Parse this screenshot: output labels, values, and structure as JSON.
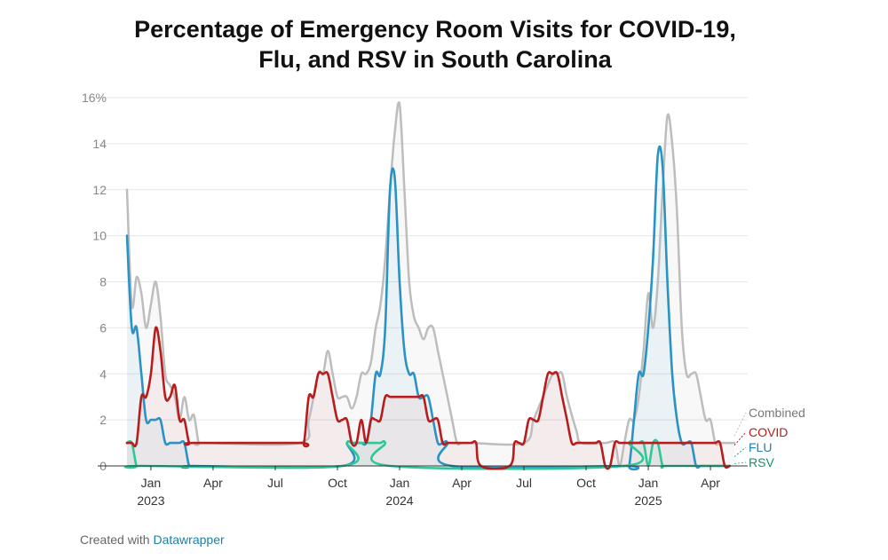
{
  "title_line1": "Percentage of Emergency Room Visits for COVID-19,",
  "title_line2": "Flu, and RSV in South Carolina",
  "footer": {
    "prefix": "Created with",
    "link": "Datawrapper"
  },
  "colors": {
    "combined": "#bdbdbd",
    "covid": "#b81c1c",
    "flu": "#2a93c4",
    "rsv": "#2ec796",
    "grid": "#e6e6e6"
  },
  "chart_data": {
    "type": "line",
    "title": "Percentage of Emergency Room Visits for COVID-19, Flu, and RSV in South Carolina",
    "x_unit": "weeks since first observation (first week ≈ late Nov 2022)",
    "ylim": [
      0,
      16
    ],
    "yticks": [
      "0",
      "2",
      "4",
      "6",
      "8",
      "10",
      "12",
      "14",
      "16%"
    ],
    "xticks": [
      {
        "week": 5,
        "label": "Jan",
        "year": "2023"
      },
      {
        "week": 18,
        "label": "Apr",
        "year": ""
      },
      {
        "week": 31,
        "label": "Jul",
        "year": ""
      },
      {
        "week": 44,
        "label": "Oct",
        "year": ""
      },
      {
        "week": 57,
        "label": "Jan",
        "year": "2024"
      },
      {
        "week": 70,
        "label": "Apr",
        "year": ""
      },
      {
        "week": 83,
        "label": "Jul",
        "year": ""
      },
      {
        "week": 96,
        "label": "Oct",
        "year": ""
      },
      {
        "week": 109,
        "label": "Jan",
        "year": "2025"
      },
      {
        "week": 122,
        "label": "Apr",
        "year": ""
      }
    ],
    "grid": true,
    "series": [
      {
        "name": "Combined",
        "key": "combined",
        "points": [
          [
            0,
            12
          ],
          [
            1,
            7
          ],
          [
            2,
            8.2
          ],
          [
            3,
            7.5
          ],
          [
            4,
            6
          ],
          [
            5,
            7
          ],
          [
            6,
            8
          ],
          [
            7,
            6.5
          ],
          [
            8,
            4
          ],
          [
            9,
            3.5
          ],
          [
            10,
            3
          ],
          [
            11,
            2
          ],
          [
            12,
            3
          ],
          [
            13,
            2
          ],
          [
            14,
            2.2
          ],
          [
            15,
            1
          ],
          [
            16,
            1
          ],
          [
            36,
            1
          ],
          [
            38,
            2
          ],
          [
            40,
            4
          ],
          [
            41,
            4
          ],
          [
            42,
            5
          ],
          [
            43,
            4
          ],
          [
            44,
            3
          ],
          [
            45,
            3
          ],
          [
            46,
            3
          ],
          [
            47,
            2.5
          ],
          [
            48,
            3
          ],
          [
            49,
            4
          ],
          [
            50,
            4
          ],
          [
            51,
            4.5
          ],
          [
            52,
            6
          ],
          [
            53,
            7
          ],
          [
            54,
            9
          ],
          [
            55,
            12
          ],
          [
            56,
            14.5
          ],
          [
            57,
            15.7
          ],
          [
            58,
            12
          ],
          [
            59,
            8
          ],
          [
            60,
            6.5
          ],
          [
            61,
            6
          ],
          [
            62,
            5.5
          ],
          [
            63,
            6
          ],
          [
            64,
            6
          ],
          [
            65,
            5
          ],
          [
            66,
            4
          ],
          [
            67,
            3
          ],
          [
            68,
            2
          ],
          [
            69,
            1
          ],
          [
            70,
            1
          ],
          [
            71,
            1
          ],
          [
            72,
            1
          ],
          [
            83,
            1
          ],
          [
            85,
            2
          ],
          [
            87,
            3
          ],
          [
            89,
            4
          ],
          [
            90,
            4
          ],
          [
            91,
            4
          ],
          [
            92,
            3
          ],
          [
            94,
            1.5
          ],
          [
            95,
            1
          ],
          [
            100,
            1
          ],
          [
            102,
            1
          ],
          [
            103,
            0
          ],
          [
            104,
            1
          ],
          [
            105,
            2
          ],
          [
            106,
            2
          ],
          [
            107,
            3
          ],
          [
            108,
            5
          ],
          [
            109,
            7.5
          ],
          [
            110,
            6
          ],
          [
            111,
            8
          ],
          [
            112,
            12
          ],
          [
            113,
            15.2
          ],
          [
            114,
            14
          ],
          [
            115,
            11
          ],
          [
            116,
            6
          ],
          [
            117,
            4
          ],
          [
            118,
            4
          ],
          [
            119,
            4
          ],
          [
            120,
            3
          ],
          [
            121,
            2
          ],
          [
            122,
            2
          ],
          [
            123,
            1
          ],
          [
            124,
            1
          ],
          [
            125,
            1
          ],
          [
            126,
            1
          ],
          [
            127,
            1
          ]
        ]
      },
      {
        "name": "COVID",
        "key": "covid",
        "points": [
          [
            0,
            1
          ],
          [
            1,
            1
          ],
          [
            2,
            1
          ],
          [
            3,
            3
          ],
          [
            4,
            3
          ],
          [
            5,
            4
          ],
          [
            6,
            6
          ],
          [
            7,
            5
          ],
          [
            8,
            3
          ],
          [
            9,
            3
          ],
          [
            10,
            3.5
          ],
          [
            11,
            2
          ],
          [
            12,
            2
          ],
          [
            13,
            1
          ],
          [
            14,
            1
          ],
          [
            36,
            1
          ],
          [
            37,
            1
          ],
          [
            38,
            3
          ],
          [
            39,
            3
          ],
          [
            40,
            4
          ],
          [
            41,
            4
          ],
          [
            42,
            4
          ],
          [
            43,
            3
          ],
          [
            44,
            2
          ],
          [
            45,
            2
          ],
          [
            46,
            2
          ],
          [
            47,
            1
          ],
          [
            48,
            1
          ],
          [
            49,
            2
          ],
          [
            50,
            1
          ],
          [
            51,
            2
          ],
          [
            52,
            2
          ],
          [
            53,
            2
          ],
          [
            54,
            3
          ],
          [
            55,
            3
          ],
          [
            56,
            3
          ],
          [
            57,
            3
          ],
          [
            58,
            3
          ],
          [
            59,
            3
          ],
          [
            60,
            3
          ],
          [
            61,
            3
          ],
          [
            62,
            3
          ],
          [
            63,
            2
          ],
          [
            64,
            2
          ],
          [
            65,
            2
          ],
          [
            66,
            1
          ],
          [
            67,
            1
          ],
          [
            68,
            1
          ],
          [
            69,
            1
          ],
          [
            70,
            1
          ],
          [
            71,
            1
          ],
          [
            72,
            1
          ],
          [
            73,
            1
          ],
          [
            74,
            0
          ],
          [
            80,
            0
          ],
          [
            81,
            1
          ],
          [
            82,
            1
          ],
          [
            83,
            1
          ],
          [
            84,
            2
          ],
          [
            85,
            2
          ],
          [
            86,
            2
          ],
          [
            87,
            3
          ],
          [
            88,
            4
          ],
          [
            89,
            4
          ],
          [
            90,
            4
          ],
          [
            91,
            3
          ],
          [
            92,
            2
          ],
          [
            93,
            1
          ],
          [
            94,
            1
          ],
          [
            95,
            1
          ],
          [
            96,
            1
          ],
          [
            97,
            1
          ],
          [
            98,
            1
          ],
          [
            99,
            1
          ],
          [
            100,
            0
          ],
          [
            101,
            0
          ],
          [
            102,
            1
          ],
          [
            103,
            1
          ],
          [
            104,
            1
          ],
          [
            105,
            1
          ],
          [
            106,
            1
          ],
          [
            107,
            1
          ],
          [
            108,
            1
          ],
          [
            109,
            1
          ],
          [
            110,
            1
          ],
          [
            111,
            1
          ],
          [
            112,
            1
          ],
          [
            113,
            1
          ],
          [
            114,
            1
          ],
          [
            115,
            1
          ],
          [
            116,
            1
          ],
          [
            117,
            1
          ],
          [
            118,
            1
          ],
          [
            119,
            1
          ],
          [
            120,
            1
          ],
          [
            121,
            1
          ],
          [
            122,
            1
          ],
          [
            123,
            1
          ],
          [
            124,
            1
          ],
          [
            125,
            0
          ],
          [
            126,
            0
          ]
        ]
      },
      {
        "name": "FLU",
        "key": "flu",
        "points": [
          [
            0,
            10
          ],
          [
            1,
            6
          ],
          [
            2,
            6
          ],
          [
            3,
            4
          ],
          [
            4,
            2
          ],
          [
            5,
            2
          ],
          [
            6,
            2
          ],
          [
            7,
            2
          ],
          [
            8,
            1
          ],
          [
            9,
            1
          ],
          [
            10,
            1
          ],
          [
            11,
            1
          ],
          [
            12,
            1
          ],
          [
            13,
            0
          ],
          [
            14,
            0
          ],
          [
            45,
            0
          ],
          [
            46,
            1
          ],
          [
            47,
            1
          ],
          [
            48,
            1
          ],
          [
            49,
            1
          ],
          [
            50,
            1
          ],
          [
            51,
            2
          ],
          [
            52,
            4
          ],
          [
            53,
            4
          ],
          [
            54,
            6
          ],
          [
            55,
            12
          ],
          [
            56,
            12.5
          ],
          [
            57,
            8
          ],
          [
            58,
            5
          ],
          [
            59,
            4
          ],
          [
            60,
            4
          ],
          [
            61,
            3
          ],
          [
            62,
            3
          ],
          [
            63,
            3
          ],
          [
            64,
            2
          ],
          [
            65,
            1
          ],
          [
            66,
            1
          ],
          [
            67,
            1
          ],
          [
            68,
            0
          ],
          [
            104,
            0
          ],
          [
            105,
            0
          ],
          [
            106,
            2
          ],
          [
            107,
            4
          ],
          [
            108,
            4
          ],
          [
            109,
            6
          ],
          [
            110,
            9
          ],
          [
            111,
            13.5
          ],
          [
            112,
            13
          ],
          [
            113,
            8
          ],
          [
            114,
            4
          ],
          [
            115,
            2
          ],
          [
            116,
            1
          ],
          [
            117,
            1
          ],
          [
            118,
            1
          ],
          [
            119,
            0
          ],
          [
            120,
            0
          ],
          [
            121,
            0
          ],
          [
            122,
            0
          ],
          [
            123,
            0
          ],
          [
            124,
            0
          ],
          [
            125,
            0
          ],
          [
            126,
            0
          ]
        ]
      },
      {
        "name": "RSV",
        "key": "rsv",
        "points": [
          [
            0,
            1
          ],
          [
            1,
            1
          ],
          [
            2,
            0
          ],
          [
            3,
            0
          ],
          [
            45,
            0
          ],
          [
            46,
            1
          ],
          [
            47,
            1
          ],
          [
            48,
            1
          ],
          [
            49,
            1
          ],
          [
            50,
            1
          ],
          [
            51,
            1
          ],
          [
            52,
            1
          ],
          [
            53,
            1
          ],
          [
            54,
            1
          ],
          [
            55,
            0
          ],
          [
            104,
            0
          ],
          [
            105,
            1
          ],
          [
            106,
            1
          ],
          [
            107,
            1
          ],
          [
            108,
            1
          ],
          [
            109,
            0
          ],
          [
            110,
            1
          ],
          [
            111,
            1
          ],
          [
            112,
            0
          ],
          [
            113,
            0
          ],
          [
            126,
            0
          ]
        ]
      }
    ],
    "legend": [
      {
        "key": "combined",
        "label": "Combined",
        "value": 1.3
      },
      {
        "key": "covid",
        "label": "COVID",
        "value": 0.9
      },
      {
        "key": "flu",
        "label": "FLU",
        "value": 0.4
      },
      {
        "key": "rsv",
        "label": "RSV",
        "value": 0.1
      }
    ]
  }
}
